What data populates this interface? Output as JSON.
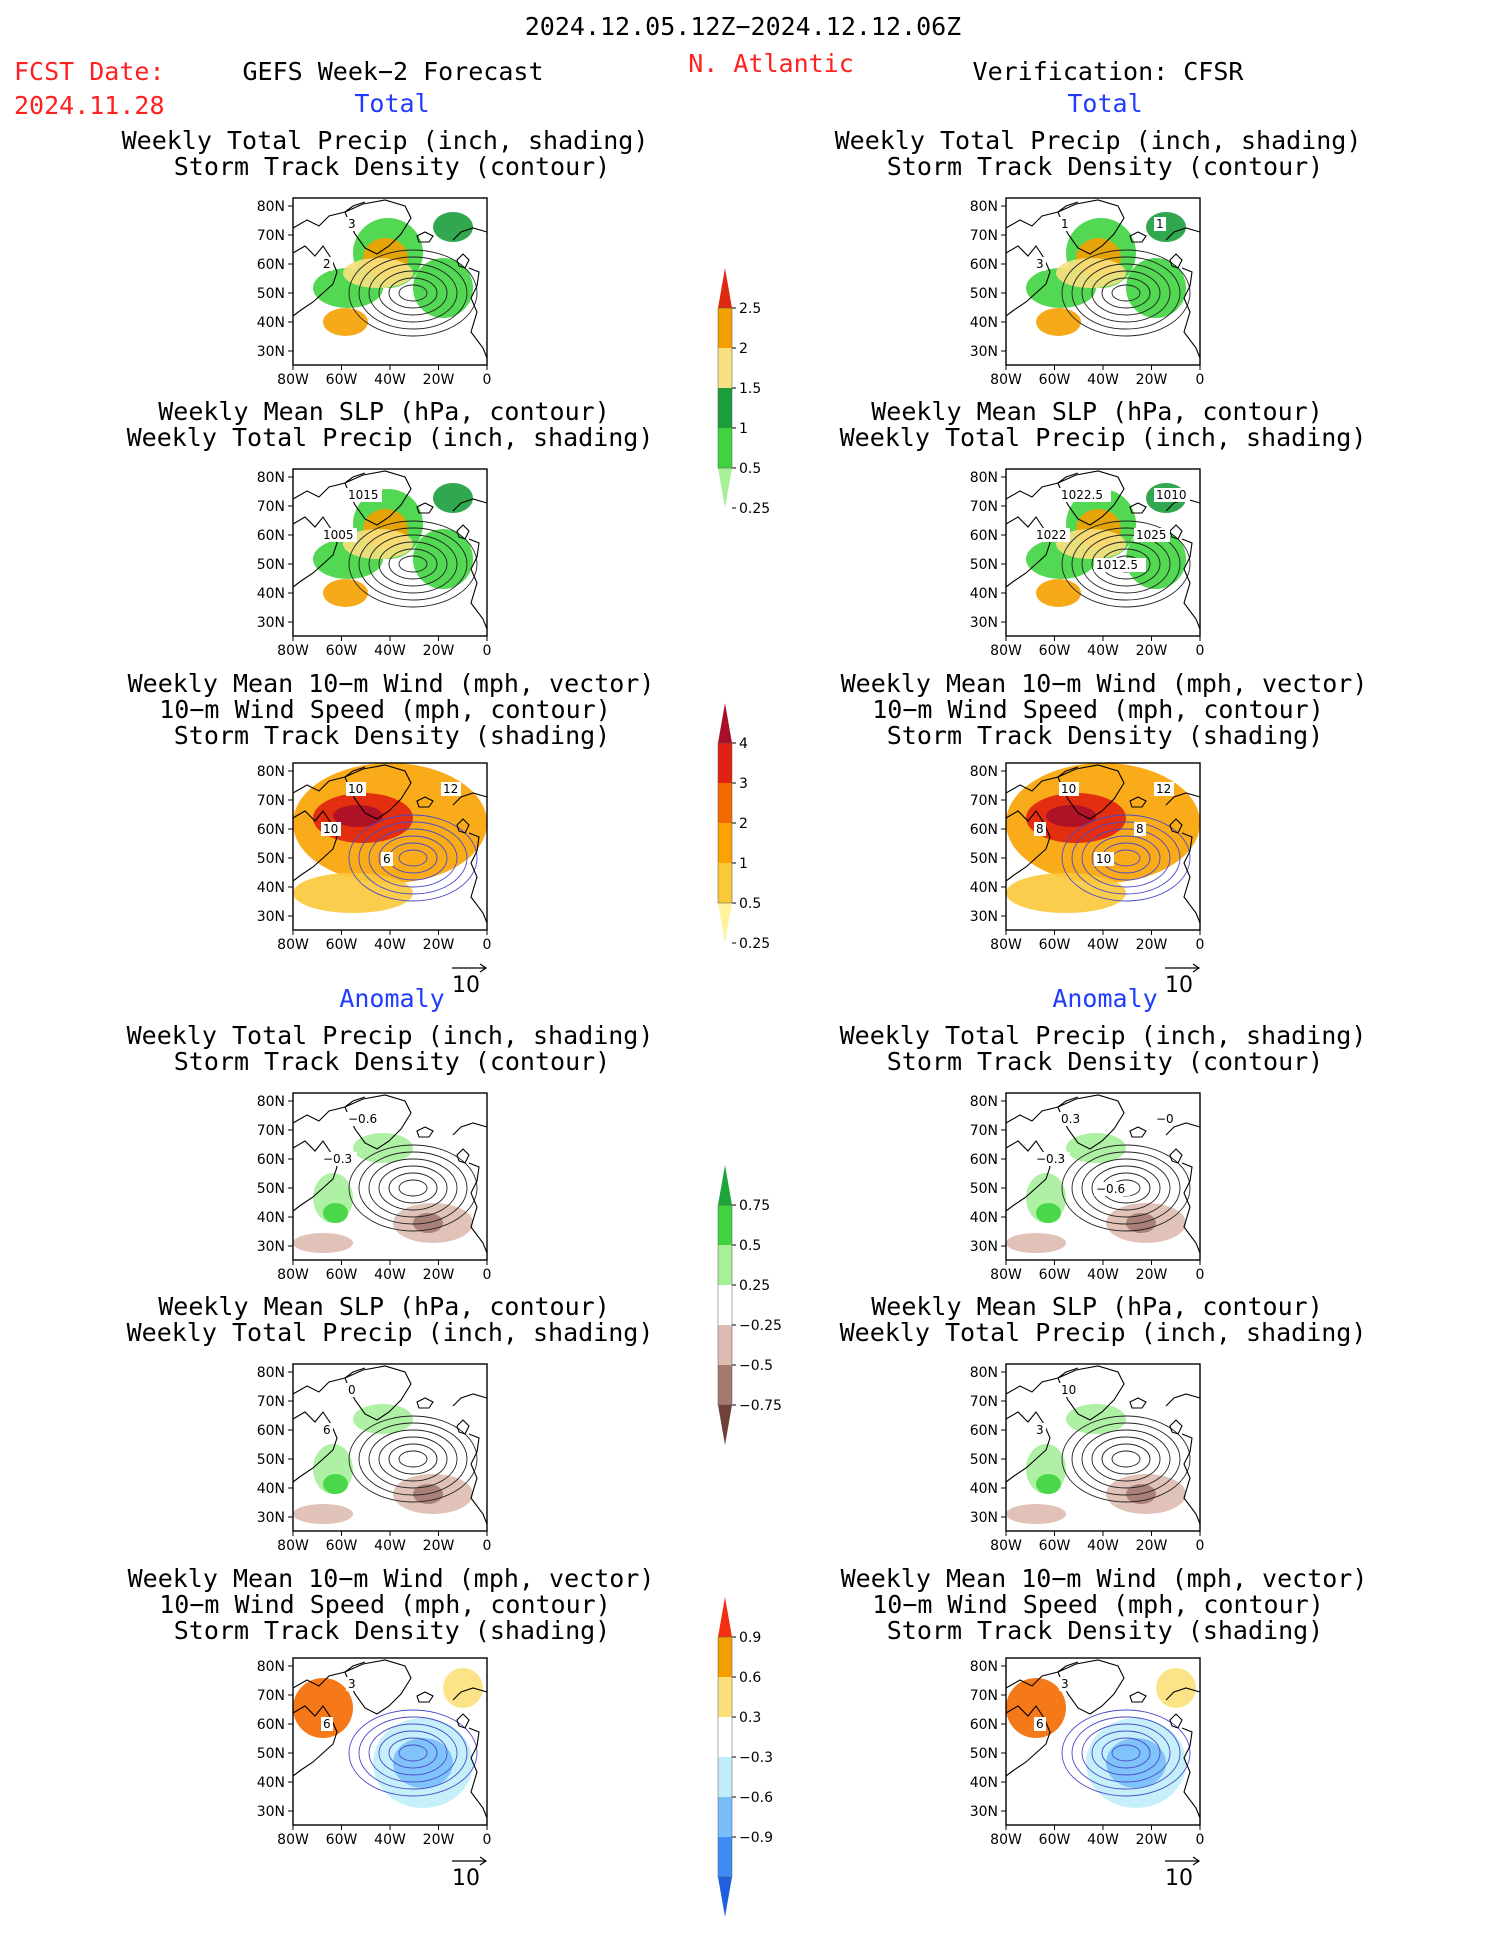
{
  "header": {
    "date_range": "2024.12.05.12Z−2024.12.12.06Z",
    "fcst_label": "FCST Date:",
    "fcst_date": "2024.11.28",
    "left_title": "GEFS Week−2 Forecast",
    "region": "N. Atlantic",
    "right_title": "Verification: CFSR"
  },
  "sections": {
    "total": "Total",
    "anomaly": "Anomaly"
  },
  "panel_titles": {
    "precip_storm": [
      "Weekly Total Precip (inch, shading)",
      "Storm Track Density (contour)"
    ],
    "slp_precip": [
      "Weekly Mean SLP (hPa, contour)",
      "Weekly Total Precip (inch, shading)"
    ],
    "wind_storm": [
      "Weekly Mean 10−m Wind (mph, vector)",
      "10−m Wind Speed (mph, contour)",
      "Storm Track Density (shading)"
    ]
  },
  "axes": {
    "lat_ticks": [
      "80N",
      "70N",
      "60N",
      "50N",
      "40N",
      "30N"
    ],
    "lon_ticks": [
      "80W",
      "60W",
      "40W",
      "20W",
      "0"
    ]
  },
  "vector_ref": "10",
  "contour_labels": {
    "t1_left": [
      "3",
      "2"
    ],
    "t1_right": [
      "1",
      "3",
      "1"
    ],
    "t2_left": [
      "1015",
      "1005"
    ],
    "t2_right": [
      "1022.5",
      "1022",
      "1010",
      "1012.5",
      "1025"
    ],
    "t3_left": [
      "10",
      "10",
      "12",
      "6"
    ],
    "t3_right": [
      "10",
      "8",
      "12",
      "10",
      "8"
    ],
    "a1_left": [
      "−0.6",
      "−0.3"
    ],
    "a1_right": [
      "0.3",
      "−0.3",
      "−0",
      "−0.6"
    ],
    "a2_left": [
      "0",
      "6"
    ],
    "a2_right": [
      "10",
      "3"
    ],
    "a3_left": [
      "3",
      "6"
    ],
    "a3_right": [
      "3",
      "6"
    ]
  },
  "colorbars": {
    "precip_total": {
      "labels": [
        "2.5",
        "2",
        "1.5",
        "1",
        "0.5",
        "0.25"
      ],
      "colors": [
        "#dd2a10",
        "#f5a000",
        "#f9e080",
        "#1b9d3c",
        "#3fd43f",
        "#a6f09a"
      ]
    },
    "storm_total": {
      "labels": [
        "4",
        "3",
        "2",
        "1",
        "0.5",
        "0.25"
      ],
      "colors": [
        "#a8102a",
        "#e02010",
        "#f56a00",
        "#f9a200",
        "#fbc83a",
        "#fff3a0"
      ]
    },
    "precip_anom": {
      "labels": [
        "0.75",
        "0.5",
        "0.25",
        "−0.25",
        "−0.5",
        "−0.75"
      ],
      "colors": [
        "#1ea53a",
        "#3fd43f",
        "#a6f09a",
        "#ffffff",
        "#ddbbb0",
        "#a47a70",
        "#6e4238"
      ]
    },
    "storm_anom": {
      "labels": [
        "0.9",
        "0.6",
        "0.3",
        "−0.3",
        "−0.6",
        "−0.9"
      ],
      "colors": [
        "#f53010",
        "#f5a000",
        "#fde07a",
        "#ffffff",
        "#bfeefa",
        "#78bef9",
        "#3f8cf6",
        "#1f5fe0"
      ]
    }
  }
}
